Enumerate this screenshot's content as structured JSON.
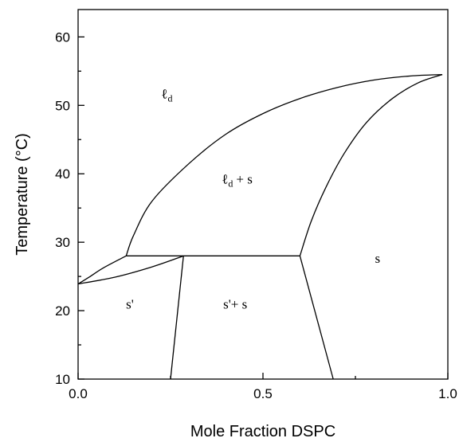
{
  "chart_data": {
    "type": "line",
    "title": "",
    "xlabel": "Mole Fraction DSPC",
    "ylabel": "Temperature (°C)",
    "xlim": [
      0.0,
      1.0
    ],
    "ylim": [
      10,
      64
    ],
    "grid": false,
    "x_ticks": [
      0.0,
      0.5,
      1.0
    ],
    "x_tick_labels": [
      "0.0",
      "0.5",
      "1.0"
    ],
    "x_minor_ticks": [
      0.25,
      0.75
    ],
    "y_ticks": [
      10,
      20,
      30,
      40,
      50,
      60
    ],
    "y_tick_labels": [
      "10",
      "20",
      "30",
      "40",
      "50",
      "60"
    ],
    "y_minor_ticks": [
      15,
      25,
      35,
      45,
      55
    ],
    "series": [
      {
        "points": [
          [
            0.0,
            23.9
          ],
          [
            0.03,
            24.9
          ],
          [
            0.07,
            26.3
          ],
          [
            0.13,
            28.0
          ]
        ]
      },
      {
        "points": [
          [
            0.0,
            23.9
          ],
          [
            0.1,
            24.9
          ],
          [
            0.2,
            26.4
          ],
          [
            0.285,
            28.0
          ]
        ]
      },
      {
        "points": [
          [
            0.13,
            28.0
          ],
          [
            0.15,
            31.0
          ],
          [
            0.2,
            36.0
          ],
          [
            0.3,
            41.5
          ],
          [
            0.4,
            45.8
          ],
          [
            0.5,
            48.8
          ],
          [
            0.6,
            51.0
          ],
          [
            0.7,
            52.6
          ],
          [
            0.8,
            53.7
          ],
          [
            0.9,
            54.3
          ],
          [
            0.985,
            54.5
          ]
        ]
      },
      {
        "points": [
          [
            0.6,
            28.0
          ],
          [
            0.63,
            33.0
          ],
          [
            0.67,
            38.0
          ],
          [
            0.72,
            43.0
          ],
          [
            0.78,
            47.5
          ],
          [
            0.85,
            51.0
          ],
          [
            0.92,
            53.3
          ],
          [
            0.985,
            54.5
          ]
        ]
      },
      {
        "points": [
          [
            0.13,
            28.0
          ],
          [
            0.6,
            28.0
          ]
        ]
      },
      {
        "points": [
          [
            0.285,
            28.0
          ],
          [
            0.25,
            10.0
          ]
        ]
      },
      {
        "points": [
          [
            0.6,
            28.0
          ],
          [
            0.69,
            10.0
          ]
        ]
      }
    ],
    "annotations": [
      {
        "main": "ℓ",
        "sub": "d",
        "after": "",
        "x": 0.24,
        "y": 51.0
      },
      {
        "main": "ℓ",
        "sub": "d",
        "after": "+  s",
        "x": 0.43,
        "y": 38.6
      },
      {
        "main": "s",
        "sub": "",
        "after": "",
        "x": 0.81,
        "y": 27.0
      },
      {
        "main": "s'",
        "sub": "",
        "after": "",
        "x": 0.14,
        "y": 20.3
      },
      {
        "main": "s'+  s",
        "sub": "",
        "after": "",
        "x": 0.425,
        "y": 20.3
      }
    ]
  }
}
